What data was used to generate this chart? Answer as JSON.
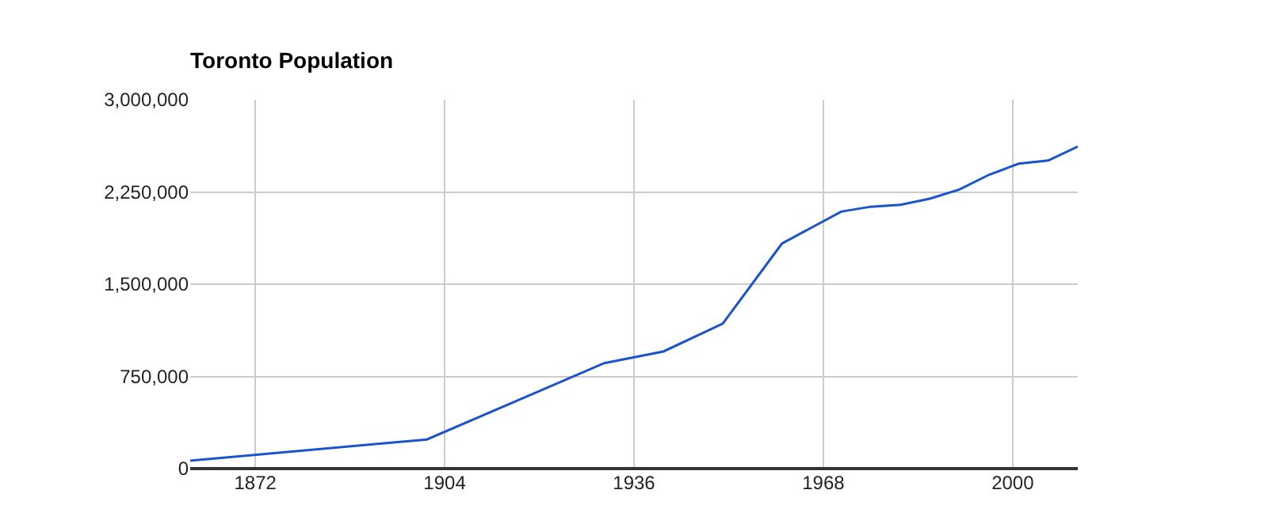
{
  "chart_data": {
    "type": "line",
    "title": "Toronto Population",
    "x": [
      1861,
      1901,
      1931,
      1941,
      1951,
      1961,
      1971,
      1976,
      1981,
      1986,
      1991,
      1996,
      2001,
      2006,
      2011
    ],
    "series": [
      {
        "color": "#1a53cc",
        "values": [
          65000,
          237000,
          858000,
          953000,
          1179000,
          1830000,
          2090000,
          2130000,
          2145000,
          2195000,
          2270000,
          2390000,
          2480000,
          2506000,
          2620000
        ]
      }
    ],
    "xlim": [
      1861,
      2011
    ],
    "xticks": [
      1872,
      1904,
      1936,
      1968,
      2000
    ],
    "ylim": [
      0,
      3000000
    ],
    "yticks": [
      {
        "value": 0,
        "label": "0"
      },
      {
        "value": 750000,
        "label": "750,000"
      },
      {
        "value": 1500000,
        "label": "1,500,000"
      },
      {
        "value": 2250000,
        "label": "2,250,000"
      },
      {
        "value": 3000000,
        "label": "3,000,000"
      }
    ],
    "grid": true,
    "legend": false,
    "marker": "none",
    "line_style": "solid"
  }
}
